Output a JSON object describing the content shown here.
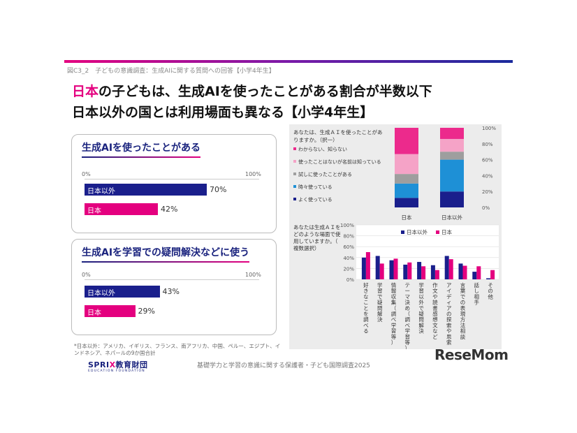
{
  "figure_label": "図C3_2　子どもの意識調査：生成AIに関する質問への回答【小学4年生】",
  "headline": {
    "highlight": "日本",
    "line1_rest": "の子どもは、生成AIを使ったことがある割合が半数以下",
    "line2": "日本以外の国とは利用場面も異なる【小学4年生】"
  },
  "panel1": {
    "title": "生成AIを使ったことがある",
    "axis_min": "0%",
    "axis_max": "100%",
    "bars": [
      {
        "label": "日本以外",
        "value": 70,
        "value_label": "70%",
        "color": "#1a1f8c"
      },
      {
        "label": "日本",
        "value": 42,
        "value_label": "42%",
        "color": "#e4007f"
      }
    ]
  },
  "panel2": {
    "title": "生成AIを学習での疑問解決などに使う",
    "axis_min": "0%",
    "axis_max": "100%",
    "bars": [
      {
        "label": "日本以外",
        "value": 43,
        "value_label": "43%",
        "color": "#1a1f8c"
      },
      {
        "label": "日本",
        "value": 29,
        "value_label": "29%",
        "color": "#e4007f"
      }
    ]
  },
  "chart_data": [
    {
      "type": "bar",
      "title": "生成AIを使ったことがある",
      "categories": [
        "日本以外",
        "日本"
      ],
      "values": [
        70,
        42
      ],
      "xlim": [
        0,
        100
      ]
    },
    {
      "type": "bar",
      "title": "生成AIを学習での疑問解決などに使う",
      "categories": [
        "日本以外",
        "日本"
      ],
      "values": [
        43,
        29
      ],
      "xlim": [
        0,
        100
      ]
    },
    {
      "type": "bar",
      "stacked": true,
      "question": "あなたは、生成ＡＩを使ったことがありますか。（択一）",
      "categories": [
        "日本",
        "日本以外"
      ],
      "ylim": [
        0,
        100
      ],
      "yticks": [
        "0%",
        "20%",
        "40%",
        "60%",
        "80%",
        "100%"
      ],
      "legend_position": "left",
      "series": [
        {
          "name": "よく使っている",
          "color": "#1a1f8c",
          "values": [
            12,
            20
          ]
        },
        {
          "name": "時々使っている",
          "color": "#1e90d6",
          "values": [
            18,
            40
          ]
        },
        {
          "name": "試しに使ったことがある",
          "color": "#9e9e9e",
          "values": [
            12,
            10
          ]
        },
        {
          "name": "使ったことはないが名前は知っている",
          "color": "#f5a3c7",
          "values": [
            25,
            16
          ]
        },
        {
          "name": "わからない、知らない",
          "color": "#ec2a8c",
          "values": [
            33,
            14
          ]
        }
      ]
    },
    {
      "type": "bar",
      "question": "あなたは生成ＡＩをどのような場面で使用していますか。（複数選択）",
      "categories": [
        "好きなことを調べる",
        "学習で疑問解決",
        "情報収集（調べ学習等）",
        "テーマ決め（調べ学習等）",
        "学習以外で疑問解決",
        "作文や読書感想文など",
        "アイディアの探索や思索",
        "言葉での表現方法相談",
        "話し相手",
        "その他"
      ],
      "ylim": [
        0,
        100
      ],
      "yticks": [
        "0%",
        "20%",
        "40%",
        "60%",
        "80%",
        "100%"
      ],
      "legend_position": "top-right",
      "series": [
        {
          "name": "日本以外",
          "color": "#1a1f8c",
          "values": [
            40,
            43,
            35,
            27,
            32,
            26,
            43,
            29,
            14,
            2
          ]
        },
        {
          "name": "日本",
          "color": "#e4007f",
          "values": [
            50,
            29,
            38,
            31,
            24,
            17,
            37,
            25,
            24,
            17
          ]
        }
      ]
    }
  ],
  "note": "*日本以外：アメリカ、イギリス、フランス、南アフリカ、中国、ペルー、エジプト、インドネシア、ネパールの9か国合計",
  "logo": {
    "prefix": "SPRI",
    "x": "X",
    "name": "教育財団",
    "sub": "EDUCATION FOUNDATION"
  },
  "footer": "基礎学力と学習の意識に関する保護者・子ども国際調査2025",
  "watermark": "ReseMom"
}
